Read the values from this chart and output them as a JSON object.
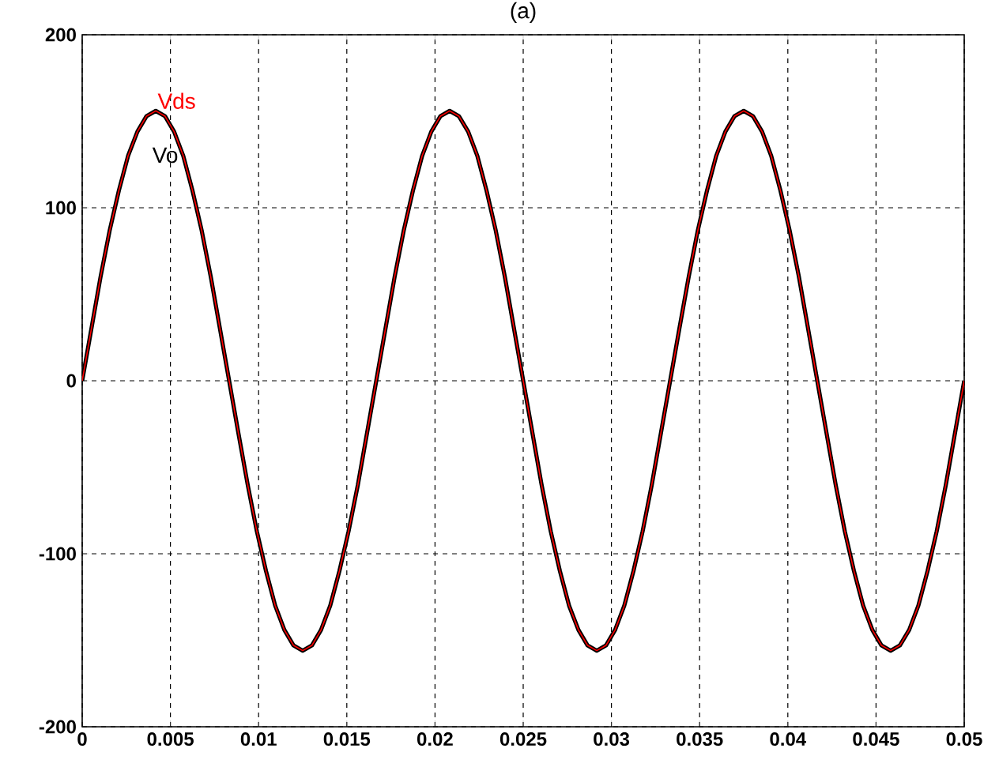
{
  "chart_data": {
    "type": "line",
    "title": "(a)",
    "x": [
      0,
      0.00052,
      0.00104,
      0.00156,
      0.00208,
      0.0026,
      0.00313,
      0.00365,
      0.00417,
      0.00469,
      0.00521,
      0.00573,
      0.00625,
      0.00677,
      0.00729,
      0.00781,
      0.00833,
      0.00885,
      0.00938,
      0.0099,
      0.01042,
      0.01094,
      0.01146,
      0.01198,
      0.0125,
      0.01302,
      0.01354,
      0.01406,
      0.01458,
      0.0151,
      0.01563,
      0.01615,
      0.01667,
      0.01719,
      0.01771,
      0.01823,
      0.01875,
      0.01927,
      0.01979,
      0.02031,
      0.02083,
      0.02135,
      0.02188,
      0.0224,
      0.02292,
      0.02344,
      0.02396,
      0.02448,
      0.025,
      0.02552,
      0.02604,
      0.02656,
      0.02708,
      0.0276,
      0.02813,
      0.02865,
      0.02917,
      0.02969,
      0.03021,
      0.03073,
      0.03125,
      0.03177,
      0.03229,
      0.03281,
      0.03333,
      0.03385,
      0.03438,
      0.0349,
      0.03542,
      0.03594,
      0.03646,
      0.03698,
      0.0375,
      0.03802,
      0.03854,
      0.03906,
      0.03958,
      0.0401,
      0.04063,
      0.04115,
      0.04167,
      0.04219,
      0.04271,
      0.04323,
      0.04375,
      0.04427,
      0.04479,
      0.04531,
      0.04583,
      0.04635,
      0.04688,
      0.0474,
      0.04792,
      0.04844,
      0.04896,
      0.04948,
      0.05
    ],
    "series": [
      {
        "name": "Vo",
        "color": "#000000",
        "values": [
          0,
          30,
          60,
          87,
          110,
          130,
          144,
          153,
          156,
          153,
          144,
          130,
          110,
          87,
          60,
          30,
          0,
          -30,
          -60,
          -87,
          -110,
          -130,
          -144,
          -153,
          -156,
          -153,
          -144,
          -130,
          -110,
          -87,
          -60,
          -30,
          0,
          30,
          60,
          87,
          110,
          130,
          144,
          153,
          156,
          153,
          144,
          130,
          110,
          87,
          60,
          30,
          0,
          -30,
          -60,
          -87,
          -110,
          -130,
          -144,
          -153,
          -156,
          -153,
          -144,
          -130,
          -110,
          -87,
          -60,
          -30,
          0,
          30,
          60,
          87,
          110,
          130,
          144,
          153,
          156,
          153,
          144,
          130,
          110,
          87,
          60,
          30,
          0,
          -30,
          -60,
          -87,
          -110,
          -130,
          -144,
          -153,
          -156,
          -153,
          -144,
          -130,
          -110,
          -87,
          -60,
          -30,
          0
        ]
      },
      {
        "name": "Vds",
        "color": "#ff0000",
        "values": [
          0,
          30,
          60,
          87,
          110,
          130,
          144,
          153,
          156,
          153,
          144,
          130,
          110,
          87,
          60,
          30,
          0,
          -30,
          -60,
          -87,
          -110,
          -130,
          -144,
          -153,
          -156,
          -153,
          -144,
          -130,
          -110,
          -87,
          -60,
          -30,
          0,
          30,
          60,
          87,
          110,
          130,
          144,
          153,
          156,
          153,
          144,
          130,
          110,
          87,
          60,
          30,
          0,
          -30,
          -60,
          -87,
          -110,
          -130,
          -144,
          -153,
          -156,
          -153,
          -144,
          -130,
          -110,
          -87,
          -60,
          -30,
          0,
          30,
          60,
          87,
          110,
          130,
          144,
          153,
          156,
          153,
          144,
          130,
          110,
          87,
          60,
          30,
          0,
          -30,
          -60,
          -87,
          -110,
          -130,
          -144,
          -153,
          -156,
          -153,
          -144,
          -130,
          -110,
          -87,
          -60,
          -30,
          0
        ]
      }
    ],
    "xlim": [
      0,
      0.05
    ],
    "xticks": [
      0,
      0.005,
      0.01,
      0.015,
      0.02,
      0.025,
      0.03,
      0.035,
      0.04,
      0.045,
      0.05
    ],
    "ylim": [
      -200,
      200
    ],
    "yticks": [
      -200,
      -100,
      0,
      100,
      200
    ],
    "grid": true,
    "marker": "none",
    "line_style": "solid"
  }
}
